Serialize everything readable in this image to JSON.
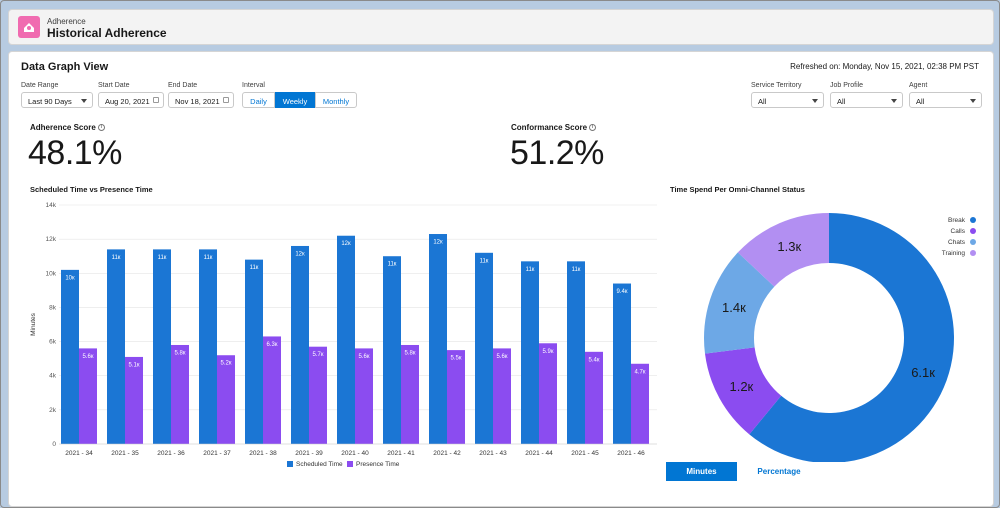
{
  "header": {
    "subtitle": "Adherence",
    "title": "Historical Adherence"
  },
  "card": {
    "title": "Data Graph View",
    "refreshed": "Refreshed on: Monday, Nov 15, 2021, 02:38 PM PST"
  },
  "filters": {
    "date_range": {
      "label": "Date Range",
      "value": "Last 90 Days"
    },
    "start_date": {
      "label": "Start Date",
      "value": "Aug 20, 2021"
    },
    "end_date": {
      "label": "End Date",
      "value": "Nov 18, 2021"
    },
    "interval": {
      "label": "Interval",
      "options": [
        "Daily",
        "Weekly",
        "Monthly"
      ],
      "selected": "Weekly"
    },
    "service_territory": {
      "label": "Service Territory",
      "value": "All"
    },
    "job_profile": {
      "label": "Job Profile",
      "value": "All"
    },
    "agent": {
      "label": "Agent",
      "value": "All"
    }
  },
  "scores": {
    "adherence": {
      "label": "Adherence Score",
      "value": "48.1%"
    },
    "conformance": {
      "label": "Conformance Score",
      "value": "51.2%"
    }
  },
  "bar_chart_title": "Scheduled Time vs Presence Time",
  "pie_chart_title": "Time Spend Per Omni-Channel Status",
  "toggle": {
    "minutes": "Minutes",
    "percentage": "Percentage"
  },
  "chart_data": [
    {
      "type": "bar",
      "title": "Scheduled Time vs Presence Time",
      "xlabel": "",
      "ylabel": "Minutes",
      "ylim": [
        0,
        14000
      ],
      "yticks": [
        "0",
        "2k",
        "4k",
        "6k",
        "8k",
        "10k",
        "12k",
        "14k"
      ],
      "categories": [
        "2021 - 34",
        "2021 - 35",
        "2021 - 36",
        "2021 - 37",
        "2021 - 38",
        "2021 - 39",
        "2021 - 40",
        "2021 - 41",
        "2021 - 42",
        "2021 - 43",
        "2021 - 44",
        "2021 - 45",
        "2021 - 46"
      ],
      "series": [
        {
          "name": "Scheduled Time",
          "color": "#1b76d4",
          "values": [
            10200,
            11400,
            11400,
            11400,
            10800,
            11600,
            12200,
            11000,
            12300,
            11200,
            10700,
            10700,
            9400
          ],
          "labels": [
            "10к",
            "11к",
            "11к",
            "11к",
            "11к",
            "12к",
            "12к",
            "11к",
            "12к",
            "11к",
            "11к",
            "11к",
            "9.4к"
          ]
        },
        {
          "name": "Presence Time",
          "color": "#8b4cf0",
          "values": [
            5600,
            5100,
            5800,
            5200,
            6300,
            5700,
            5600,
            5800,
            5500,
            5600,
            5900,
            5400,
            4700
          ],
          "labels": [
            "5.6к",
            "5.1к",
            "5.8к",
            "5.2к",
            "6.3к",
            "5.7к",
            "5.6к",
            "5.8к",
            "5.5к",
            "5.6к",
            "5.9к",
            "5.4к",
            "4.7к"
          ]
        }
      ],
      "legend": "bottom",
      "grid": true
    },
    {
      "type": "pie",
      "title": "Time Spend Per Omni-Channel Status",
      "donut": true,
      "slices": [
        {
          "name": "Break",
          "value": 6100,
          "label": "6.1к",
          "color": "#1b76d4"
        },
        {
          "name": "Calls",
          "value": 1200,
          "label": "1.2к",
          "color": "#8b4cf0"
        },
        {
          "name": "Chats",
          "value": 1400,
          "label": "1.4к",
          "color": "#6da8e6"
        },
        {
          "name": "Training",
          "value": 1300,
          "label": "1.3к",
          "color": "#b28ff2"
        }
      ],
      "legend": "top-right"
    }
  ]
}
